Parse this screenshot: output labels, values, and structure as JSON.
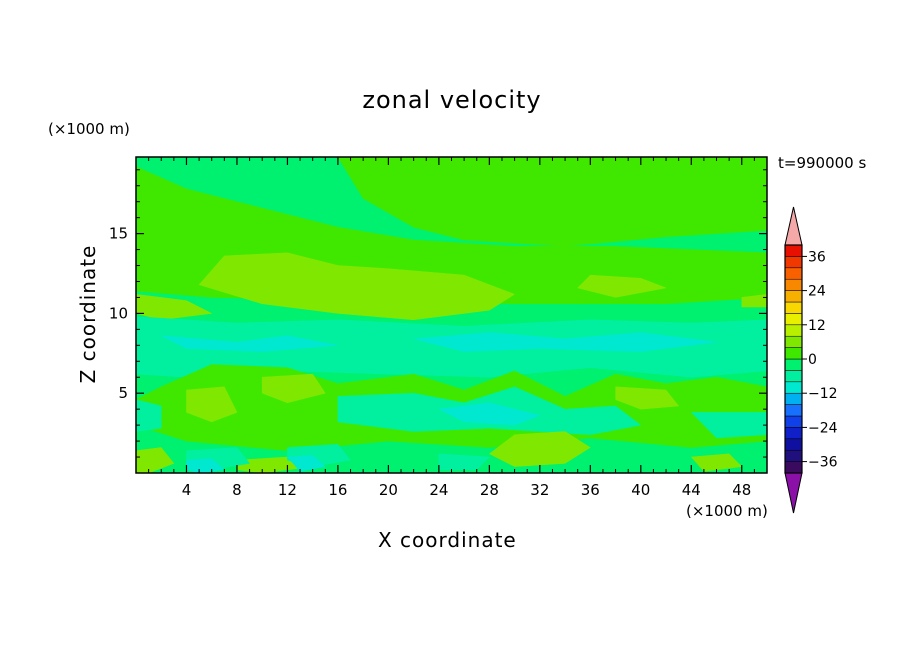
{
  "chart_data": {
    "type": "heatmap",
    "title": "zonal velocity",
    "xlabel": "X coordinate",
    "ylabel": "Z coordinate",
    "x_unit": "(×1000 m)",
    "y_unit": "(×1000 m)",
    "time_label": "t=990000 s",
    "xlim": [
      0,
      50
    ],
    "ylim": [
      0,
      19.8
    ],
    "x_ticks": [
      4,
      8,
      12,
      16,
      20,
      24,
      28,
      32,
      36,
      40,
      44,
      48
    ],
    "y_ticks": [
      5,
      10,
      15
    ],
    "x_tick_labels": [
      "4",
      "8",
      "12",
      "16",
      "20",
      "24",
      "28",
      "32",
      "36",
      "40",
      "44",
      "48"
    ],
    "y_tick_labels": [
      "5",
      "10",
      "15"
    ],
    "colorbar": {
      "levels": [
        -40,
        -36,
        -32,
        -28,
        -24,
        -20,
        -16,
        -12,
        -8,
        -4,
        0,
        4,
        8,
        12,
        16,
        20,
        24,
        28,
        32,
        36,
        40
      ],
      "tick_values": [
        36,
        24,
        12,
        0,
        -12,
        -24,
        -36
      ],
      "tick_labels": [
        "36",
        "24",
        "12",
        "0",
        "−12",
        "−24",
        "−36"
      ],
      "colors": [
        "#3a0a5e",
        "#20107e",
        "#1010a0",
        "#1020c8",
        "#1040e8",
        "#1870ff",
        "#00b0f0",
        "#00e8d0",
        "#00f0a0",
        "#00f070",
        "#40e800",
        "#80e800",
        "#b8f000",
        "#e8f000",
        "#f8d800",
        "#f8b000",
        "#f88800",
        "#f86000",
        "#f03800",
        "#e81000"
      ],
      "extend_low_color": "#8a10a8",
      "extend_high_color": "#f4a8a8"
    },
    "field_colors": {
      "minus12": "#00e8d0",
      "minus8": "#00f0a0",
      "minus4": "#00f070",
      "zero": "#40e800",
      "plus4": "#80e800",
      "plus8": "#b8f000"
    },
    "regions": [
      {
        "level": -4,
        "polygon": [
          [
            0,
            19.8
          ],
          [
            50,
            19.8
          ],
          [
            50,
            0
          ],
          [
            0,
            0
          ]
        ]
      },
      {
        "level": 0,
        "polygon": [
          [
            16,
            19.8
          ],
          [
            50,
            19.8
          ],
          [
            50,
            15.2
          ],
          [
            42,
            14.8
          ],
          [
            34,
            14.2
          ],
          [
            26,
            14.6
          ],
          [
            22,
            15.4
          ],
          [
            18,
            17.2
          ]
        ]
      },
      {
        "level": 0,
        "polygon": [
          [
            0,
            19.2
          ],
          [
            4,
            17.8
          ],
          [
            10,
            16.6
          ],
          [
            16,
            15.4
          ],
          [
            22,
            14.6
          ],
          [
            30,
            14.2
          ],
          [
            38,
            14.2
          ],
          [
            44,
            14.0
          ],
          [
            50,
            13.8
          ],
          [
            50,
            11.0
          ],
          [
            42,
            10.6
          ],
          [
            30,
            10.6
          ],
          [
            18,
            10.8
          ],
          [
            6,
            11.0
          ],
          [
            0,
            11.4
          ]
        ]
      },
      {
        "level": 4,
        "polygon": [
          [
            7,
            13.6
          ],
          [
            12,
            13.8
          ],
          [
            16,
            13.0
          ],
          [
            20,
            12.8
          ],
          [
            26,
            12.4
          ],
          [
            30,
            11.2
          ],
          [
            28,
            10.2
          ],
          [
            22,
            9.6
          ],
          [
            16,
            10.0
          ],
          [
            10,
            10.6
          ],
          [
            5,
            11.8
          ]
        ]
      },
      {
        "level": 4,
        "polygon": [
          [
            0,
            11.2
          ],
          [
            4,
            10.8
          ],
          [
            6,
            10.0
          ],
          [
            2,
            9.6
          ],
          [
            0,
            10.0
          ]
        ]
      },
      {
        "level": 4,
        "polygon": [
          [
            36,
            12.4
          ],
          [
            40,
            12.2
          ],
          [
            42,
            11.6
          ],
          [
            38,
            11.0
          ],
          [
            35,
            11.6
          ]
        ]
      },
      {
        "level": 4,
        "polygon": [
          [
            48,
            11.0
          ],
          [
            50,
            11.2
          ],
          [
            50,
            10.4
          ],
          [
            48,
            10.4
          ]
        ]
      },
      {
        "level": -8,
        "polygon": [
          [
            0,
            9.8
          ],
          [
            8,
            9.4
          ],
          [
            16,
            9.6
          ],
          [
            26,
            9.2
          ],
          [
            36,
            9.6
          ],
          [
            44,
            9.4
          ],
          [
            50,
            9.6
          ],
          [
            50,
            6.4
          ],
          [
            44,
            6.0
          ],
          [
            36,
            6.6
          ],
          [
            28,
            6.0
          ],
          [
            20,
            6.2
          ],
          [
            12,
            6.4
          ],
          [
            4,
            6.0
          ],
          [
            0,
            6.2
          ]
        ]
      },
      {
        "level": -12,
        "polygon": [
          [
            2,
            8.6
          ],
          [
            8,
            8.2
          ],
          [
            12,
            8.6
          ],
          [
            16,
            8.0
          ],
          [
            10,
            7.6
          ],
          [
            4,
            7.8
          ]
        ]
      },
      {
        "level": -12,
        "polygon": [
          [
            22,
            8.4
          ],
          [
            28,
            8.8
          ],
          [
            34,
            8.4
          ],
          [
            40,
            8.8
          ],
          [
            46,
            8.2
          ],
          [
            40,
            7.6
          ],
          [
            32,
            7.8
          ],
          [
            26,
            7.6
          ]
        ]
      },
      {
        "level": 0,
        "polygon": [
          [
            2,
            5.4
          ],
          [
            6,
            6.8
          ],
          [
            12,
            6.6
          ],
          [
            16,
            5.6
          ],
          [
            22,
            6.2
          ],
          [
            26,
            5.2
          ],
          [
            30,
            6.4
          ],
          [
            34,
            4.8
          ],
          [
            38,
            6.2
          ],
          [
            42,
            5.6
          ],
          [
            46,
            6.0
          ],
          [
            50,
            5.4
          ],
          [
            50,
            2.0
          ],
          [
            44,
            1.6
          ],
          [
            36,
            2.2
          ],
          [
            28,
            1.6
          ],
          [
            20,
            2.0
          ],
          [
            12,
            1.4
          ],
          [
            4,
            2.0
          ],
          [
            0,
            3.0
          ],
          [
            0,
            4.6
          ]
        ]
      },
      {
        "level": 4,
        "polygon": [
          [
            4,
            5.2
          ],
          [
            7,
            5.4
          ],
          [
            8,
            3.8
          ],
          [
            6,
            3.2
          ],
          [
            4,
            3.8
          ]
        ]
      },
      {
        "level": 4,
        "polygon": [
          [
            10,
            6.0
          ],
          [
            14,
            6.2
          ],
          [
            15,
            5.0
          ],
          [
            12,
            4.4
          ],
          [
            10,
            5.0
          ]
        ]
      },
      {
        "level": 4,
        "polygon": [
          [
            38,
            5.4
          ],
          [
            42,
            5.2
          ],
          [
            43,
            4.2
          ],
          [
            40,
            4.0
          ],
          [
            38,
            4.6
          ]
        ]
      },
      {
        "level": -8,
        "polygon": [
          [
            16,
            4.8
          ],
          [
            22,
            5.0
          ],
          [
            26,
            4.4
          ],
          [
            30,
            5.4
          ],
          [
            34,
            4.0
          ],
          [
            38,
            4.2
          ],
          [
            40,
            3.0
          ],
          [
            36,
            2.4
          ],
          [
            28,
            2.8
          ],
          [
            22,
            2.6
          ],
          [
            16,
            3.2
          ]
        ]
      },
      {
        "level": -12,
        "polygon": [
          [
            24,
            4.0
          ],
          [
            28,
            4.4
          ],
          [
            32,
            3.6
          ],
          [
            30,
            3.0
          ],
          [
            26,
            3.2
          ]
        ]
      },
      {
        "level": -8,
        "polygon": [
          [
            0,
            4.6
          ],
          [
            2,
            4.2
          ],
          [
            2,
            2.8
          ],
          [
            0,
            2.6
          ]
        ]
      },
      {
        "level": -8,
        "polygon": [
          [
            44,
            3.8
          ],
          [
            50,
            3.8
          ],
          [
            50,
            2.4
          ],
          [
            46,
            2.2
          ]
        ]
      },
      {
        "level": 4,
        "polygon": [
          [
            30,
            2.4
          ],
          [
            34,
            2.6
          ],
          [
            36,
            1.6
          ],
          [
            34,
            0.6
          ],
          [
            30,
            0.4
          ],
          [
            28,
            1.2
          ]
        ]
      },
      {
        "level": 4,
        "polygon": [
          [
            0,
            1.4
          ],
          [
            2,
            1.6
          ],
          [
            3,
            0.6
          ],
          [
            1,
            0
          ],
          [
            0,
            0
          ]
        ]
      },
      {
        "level": 4,
        "polygon": [
          [
            8,
            0.8
          ],
          [
            12,
            1.0
          ],
          [
            13,
            0.3
          ],
          [
            10,
            0.0
          ],
          [
            8,
            0.2
          ]
        ]
      },
      {
        "level": 4,
        "polygon": [
          [
            44,
            1.0
          ],
          [
            47,
            1.2
          ],
          [
            48,
            0.4
          ],
          [
            45,
            0.1
          ]
        ]
      },
      {
        "level": -8,
        "polygon": [
          [
            4,
            1.4
          ],
          [
            8,
            1.6
          ],
          [
            9,
            0.6
          ],
          [
            6,
            0.2
          ],
          [
            4,
            0.6
          ]
        ]
      },
      {
        "level": -12,
        "polygon": [
          [
            4,
            0.8
          ],
          [
            6,
            0.9
          ],
          [
            7,
            0.2
          ],
          [
            5,
            0.0
          ],
          [
            4,
            0.2
          ]
        ]
      },
      {
        "level": -8,
        "polygon": [
          [
            12,
            1.6
          ],
          [
            16,
            1.8
          ],
          [
            17,
            0.8
          ],
          [
            14,
            0.4
          ],
          [
            12,
            0.8
          ]
        ]
      },
      {
        "level": -12,
        "polygon": [
          [
            12,
            1.0
          ],
          [
            14,
            1.1
          ],
          [
            15,
            0.4
          ],
          [
            13,
            0.1
          ]
        ]
      },
      {
        "level": -8,
        "polygon": [
          [
            24,
            1.2
          ],
          [
            28,
            1.0
          ],
          [
            27,
            0.2
          ],
          [
            24,
            0.2
          ]
        ]
      }
    ]
  }
}
